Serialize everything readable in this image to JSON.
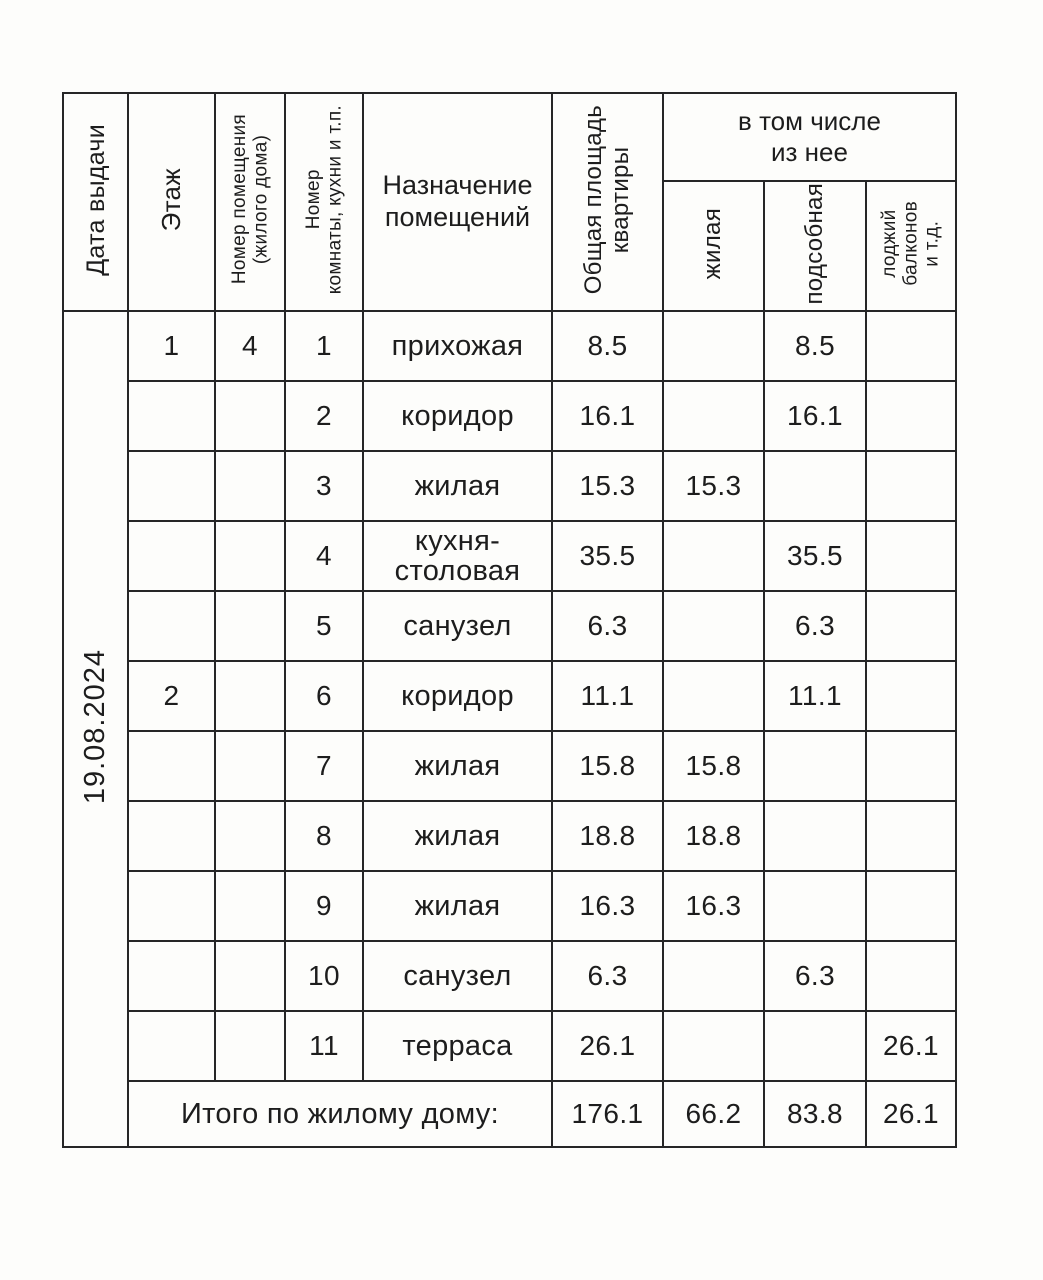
{
  "document": {
    "date_of_issue": "19.08.2024",
    "header": {
      "date_col": "Дата выдачи",
      "floor_col": "Этаж",
      "premises_col": "Номер помещения\n(жилого дома)",
      "room_col": "Номер\nкомнаты, кухни и т.п.",
      "purpose_col": "Назначение\nпомещений",
      "total_area_col": "Общая площадь\nквартиры",
      "including_col": "в том числе\nиз нее",
      "living_col": "жилая",
      "auxiliary_col": "подсобная",
      "loggia_col": "лоджий\nбалконов\nи т.д."
    },
    "rows": [
      {
        "floor": "1",
        "premises": "4",
        "room": "1",
        "purpose": "прихожая",
        "total_area": "8.5",
        "living": "",
        "auxiliary": "8.5",
        "loggia": ""
      },
      {
        "floor": "",
        "premises": "",
        "room": "2",
        "purpose": "коридор",
        "total_area": "16.1",
        "living": "",
        "auxiliary": "16.1",
        "loggia": ""
      },
      {
        "floor": "",
        "premises": "",
        "room": "3",
        "purpose": "жилая",
        "total_area": "15.3",
        "living": "15.3",
        "auxiliary": "",
        "loggia": ""
      },
      {
        "floor": "",
        "premises": "",
        "room": "4",
        "purpose": "кухня-\nстоловая",
        "total_area": "35.5",
        "living": "",
        "auxiliary": "35.5",
        "loggia": ""
      },
      {
        "floor": "",
        "premises": "",
        "room": "5",
        "purpose": "санузел",
        "total_area": "6.3",
        "living": "",
        "auxiliary": "6.3",
        "loggia": ""
      },
      {
        "floor": "2",
        "premises": "",
        "room": "6",
        "purpose": "коридор",
        "total_area": "11.1",
        "living": "",
        "auxiliary": "11.1",
        "loggia": ""
      },
      {
        "floor": "",
        "premises": "",
        "room": "7",
        "purpose": "жилая",
        "total_area": "15.8",
        "living": "15.8",
        "auxiliary": "",
        "loggia": ""
      },
      {
        "floor": "",
        "premises": "",
        "room": "8",
        "purpose": "жилая",
        "total_area": "18.8",
        "living": "18.8",
        "auxiliary": "",
        "loggia": ""
      },
      {
        "floor": "",
        "premises": "",
        "room": "9",
        "purpose": "жилая",
        "total_area": "16.3",
        "living": "16.3",
        "auxiliary": "",
        "loggia": ""
      },
      {
        "floor": "",
        "premises": "",
        "room": "10",
        "purpose": "санузел",
        "total_area": "6.3",
        "living": "",
        "auxiliary": "6.3",
        "loggia": ""
      },
      {
        "floor": "",
        "premises": "",
        "room": "11",
        "purpose": "терраса",
        "total_area": "26.1",
        "living": "",
        "auxiliary": "",
        "loggia": "26.1"
      }
    ],
    "total_row": {
      "label": "Итого по жилому дому:",
      "total_area": "176.1",
      "living": "66.2",
      "auxiliary": "83.8",
      "loggia": "26.1"
    }
  }
}
